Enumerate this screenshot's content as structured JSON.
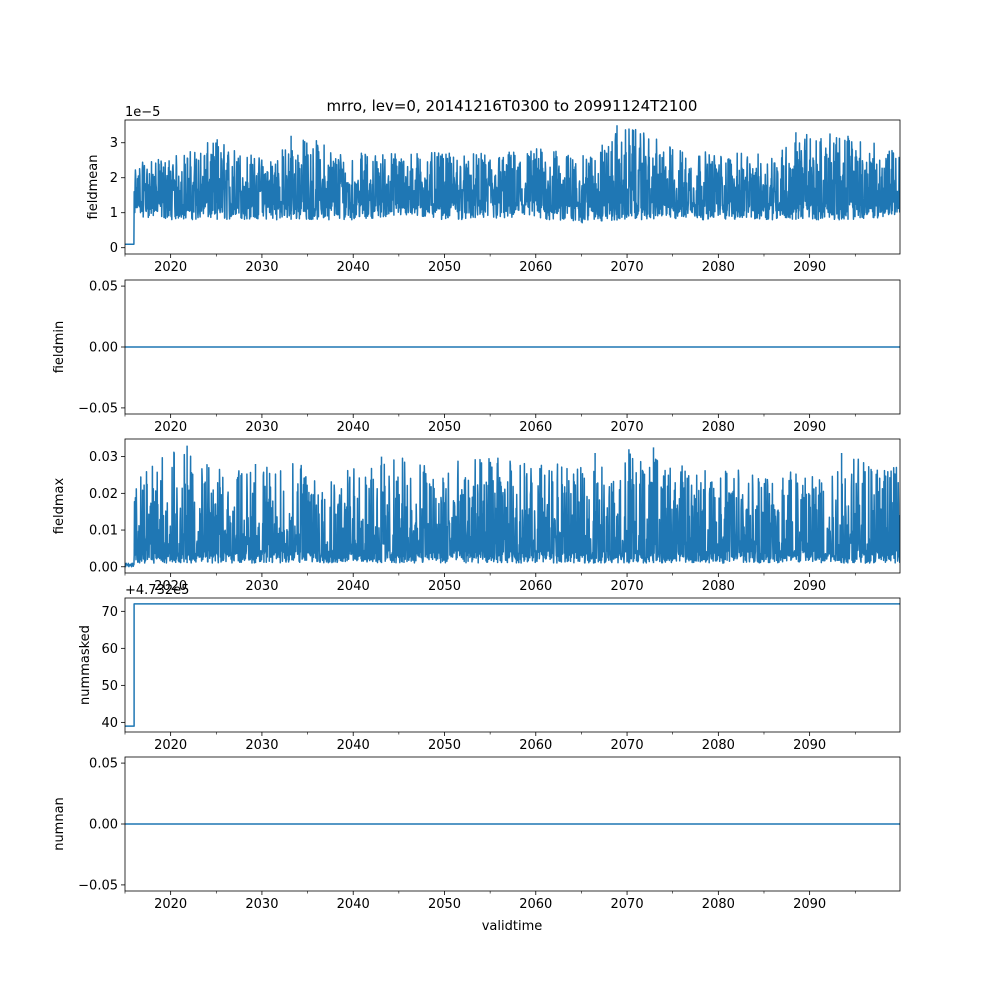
{
  "figure": {
    "title": "mrro, lev=0, 20141216T0300 to 20991124T2100",
    "xlabel": "validtime"
  },
  "colors": {
    "line": "#1f77b4",
    "axes": "#000000",
    "background": "#ffffff"
  },
  "chart_data": [
    {
      "type": "line",
      "ylabel": "fieldmean",
      "offset_text": "1e−5",
      "xlim": [
        2015.0,
        2099.9
      ],
      "ylim": [
        -0.18,
        3.65
      ],
      "xticks": [
        "2020",
        "2030",
        "2040",
        "2050",
        "2060",
        "2070",
        "2080",
        "2090"
      ],
      "yticks": [
        "0",
        "1",
        "2",
        "3"
      ],
      "ytick_values": [
        0,
        1,
        2,
        3
      ],
      "series": [
        {
          "style": "dense-noise",
          "x": [
            2015.0,
            2016.0,
            2016.0,
            2020.0,
            2025.0,
            2030.0,
            2035.0,
            2040.0,
            2045.0,
            2050.0,
            2055.0,
            2060.0,
            2065.0,
            2070.0,
            2075.0,
            2080.0,
            2085.0,
            2090.0,
            2095.0,
            2099.9
          ],
          "y": [
            0.1,
            0.1,
            1.6,
            1.6,
            1.6,
            1.6,
            1.6,
            1.6,
            1.6,
            1.6,
            1.6,
            1.6,
            1.6,
            1.6,
            1.6,
            1.6,
            1.6,
            1.6,
            1.6,
            1.6
          ],
          "y_low": [
            0.1,
            0.1,
            0.9,
            0.8,
            0.8,
            0.8,
            0.8,
            0.8,
            0.9,
            0.8,
            0.8,
            0.8,
            0.7,
            0.8,
            0.8,
            0.8,
            0.8,
            0.8,
            0.8,
            0.9
          ],
          "y_high": [
            0.1,
            0.1,
            2.4,
            2.6,
            3.1,
            2.6,
            3.2,
            2.7,
            2.8,
            2.7,
            2.7,
            2.9,
            2.6,
            3.5,
            2.9,
            2.7,
            2.7,
            3.3,
            3.2,
            2.7
          ],
          "peaks": [
            [
              2025.1,
              3.1
            ],
            [
              2033.2,
              3.2
            ],
            [
              2068.9,
              3.5
            ],
            [
              2088.5,
              3.3
            ],
            [
              2094.2,
              3.2
            ]
          ]
        }
      ]
    },
    {
      "type": "line",
      "ylabel": "fieldmin",
      "offset_text": "",
      "xlim": [
        2015.0,
        2099.9
      ],
      "ylim": [
        -0.055,
        0.055
      ],
      "xticks": [
        "2020",
        "2030",
        "2040",
        "2050",
        "2060",
        "2070",
        "2080",
        "2090"
      ],
      "yticks": [
        "−0.05",
        "0.00",
        "0.05"
      ],
      "ytick_values": [
        -0.05,
        0.0,
        0.05
      ],
      "series": [
        {
          "style": "line",
          "x": [
            2015.0,
            2099.9
          ],
          "y": [
            0.0,
            0.0
          ]
        }
      ]
    },
    {
      "type": "line",
      "ylabel": "fieldmax",
      "offset_text": "",
      "xlim": [
        2015.0,
        2099.9
      ],
      "ylim": [
        -0.0017,
        0.0348
      ],
      "xticks": [
        "2020",
        "2030",
        "2040",
        "2050",
        "2060",
        "2070",
        "2080",
        "2090"
      ],
      "yticks": [
        "0.00",
        "0.01",
        "0.02",
        "0.03"
      ],
      "ytick_values": [
        0.0,
        0.01,
        0.02,
        0.03
      ],
      "series": [
        {
          "style": "dense-noise",
          "x": [
            2015.0,
            2016.0,
            2016.0,
            2020.0,
            2025.0,
            2030.0,
            2035.0,
            2040.0,
            2045.0,
            2050.0,
            2055.0,
            2060.0,
            2065.0,
            2070.0,
            2075.0,
            2080.0,
            2085.0,
            2090.0,
            2095.0,
            2099.9
          ],
          "y": [
            0.0005,
            0.0005,
            0.006,
            0.006,
            0.006,
            0.006,
            0.006,
            0.006,
            0.006,
            0.006,
            0.006,
            0.006,
            0.006,
            0.006,
            0.006,
            0.006,
            0.006,
            0.006,
            0.006,
            0.006
          ],
          "y_low": [
            0.0,
            0.0,
            0.001,
            0.001,
            0.001,
            0.001,
            0.001,
            0.001,
            0.001,
            0.001,
            0.001,
            0.001,
            0.001,
            0.001,
            0.001,
            0.001,
            0.001,
            0.001,
            0.001,
            0.001
          ],
          "y_high": [
            0.001,
            0.001,
            0.023,
            0.033,
            0.027,
            0.027,
            0.029,
            0.027,
            0.03,
            0.029,
            0.03,
            0.029,
            0.027,
            0.032,
            0.028,
            0.027,
            0.027,
            0.029,
            0.031,
            0.027
          ],
          "peaks": [
            [
              2021.8,
              0.033
            ],
            [
              2029.3,
              0.028
            ],
            [
              2043.1,
              0.03
            ],
            [
              2066.5,
              0.031
            ],
            [
              2070.2,
              0.032
            ],
            [
              2072.9,
              0.0325
            ],
            [
              2093.5,
              0.031
            ]
          ]
        }
      ]
    },
    {
      "type": "line",
      "ylabel": "nummasked",
      "offset_text": "+4.732e5",
      "xlim": [
        2015.0,
        2099.9
      ],
      "ylim": [
        37.4,
        73.6
      ],
      "xticks": [
        "2020",
        "2030",
        "2040",
        "2050",
        "2060",
        "2070",
        "2080",
        "2090"
      ],
      "yticks": [
        "40",
        "50",
        "60",
        "70"
      ],
      "ytick_values": [
        40,
        50,
        60,
        70
      ],
      "series": [
        {
          "style": "step",
          "x": [
            2015.0,
            2016.0,
            2016.0,
            2099.9
          ],
          "y": [
            39,
            39,
            72,
            72
          ]
        }
      ]
    },
    {
      "type": "line",
      "ylabel": "numnan",
      "offset_text": "",
      "xlim": [
        2015.0,
        2099.9
      ],
      "ylim": [
        -0.055,
        0.055
      ],
      "xticks": [
        "2020",
        "2030",
        "2040",
        "2050",
        "2060",
        "2070",
        "2080",
        "2090"
      ],
      "yticks": [
        "−0.05",
        "0.00",
        "0.05"
      ],
      "ytick_values": [
        -0.05,
        0.0,
        0.05
      ],
      "series": [
        {
          "style": "line",
          "x": [
            2015.0,
            2099.9
          ],
          "y": [
            0.0,
            0.0
          ]
        }
      ]
    }
  ]
}
